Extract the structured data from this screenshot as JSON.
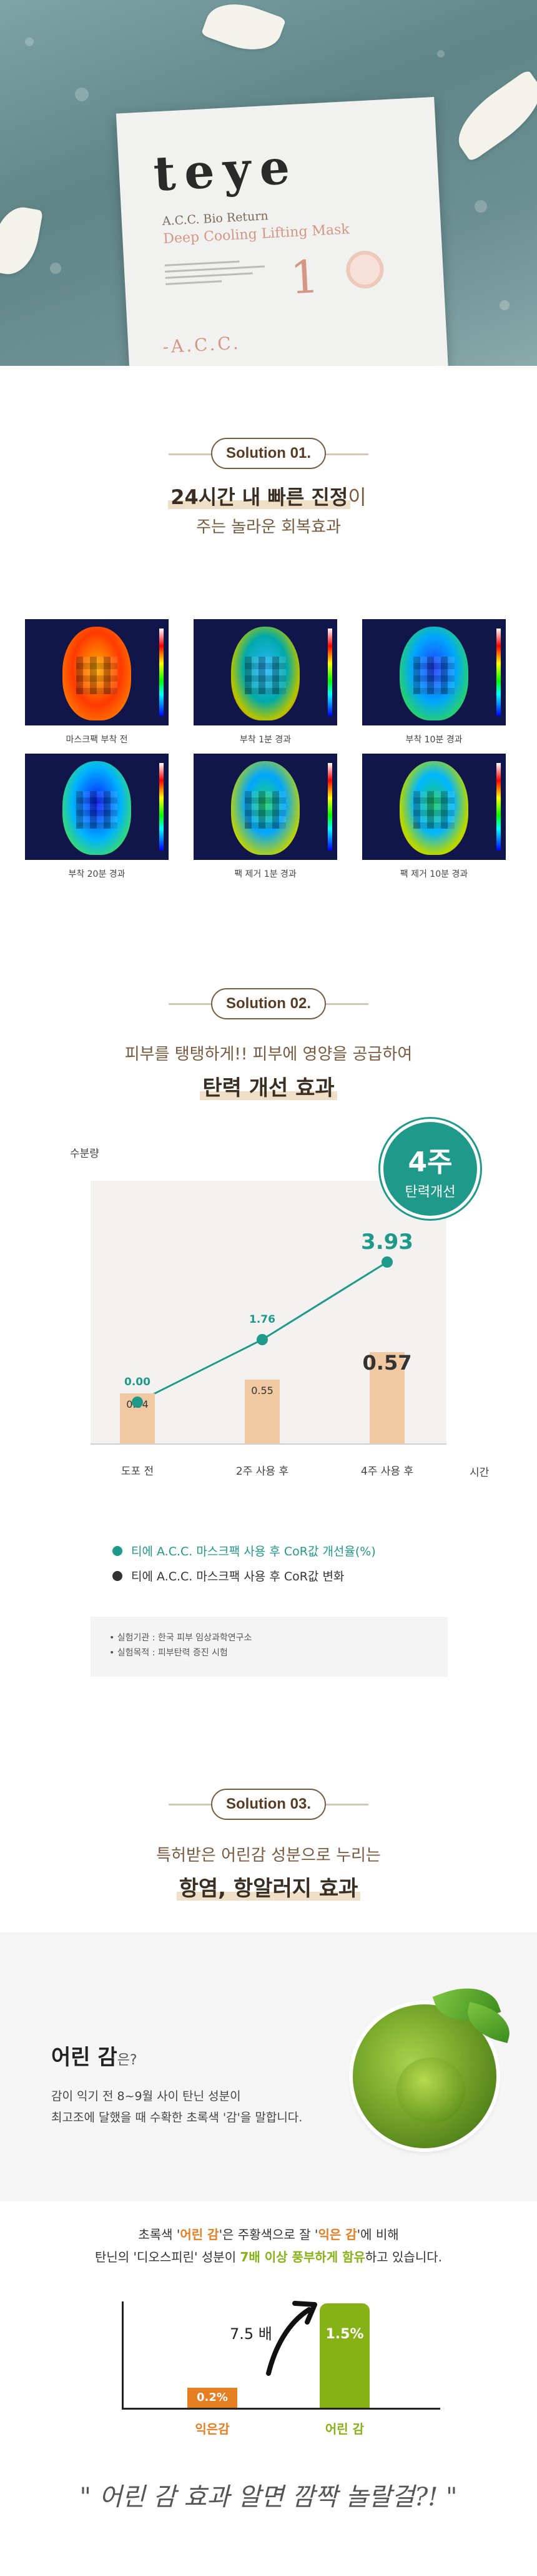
{
  "hero": {
    "brand": "teye",
    "product_line1": "A.C.C. Bio Return",
    "product_line2": "Deep Cooling Lifting Mask",
    "product_number": "1",
    "footer_mark": "-A.C.C."
  },
  "solution1": {
    "pill": "Solution 01.",
    "headline_strong": "24시간 내 빠른 진정",
    "headline_suffix": "이",
    "subline": "주는 놀라운 회복효과",
    "captions": [
      "마스크팩 부착 전",
      "부착 1분 경과",
      "부착 10분 경과",
      "부착 20분 경과",
      "팩 제거 1분 경과",
      "팩 제거 10분 경과"
    ]
  },
  "solution2": {
    "pill": "Solution 02.",
    "lead": "피부를 탱탱하게!! 피부에 영양을 공급하여",
    "headline": "탄력 개선 효과",
    "badge_big": "4주",
    "badge_small": "탄력개선",
    "legend": [
      {
        "label": "티에 A.C.C. 마스크팩 사용 후 CoR값 개선율(%)",
        "color": "#1f9a8a"
      },
      {
        "label": "티에 A.C.C. 마스크팩 사용 후 CoR값 변화",
        "color": "#333333"
      }
    ],
    "notes": [
      "실험기관 : 한국 피부 임상과학연구소",
      "실험목적 : 피부탄력 증진 시험"
    ]
  },
  "chart_data": {
    "type": "bar",
    "ylabel": "수분량",
    "xlabel": "시간",
    "categories": [
      "도포 전",
      "2주 사용 후",
      "4주 사용 후"
    ],
    "series": [
      {
        "name": "티에 A.C.C. 마스크팩 사용 후 CoR값 변화",
        "type": "bar",
        "values": [
          0.54,
          0.55,
          0.57
        ],
        "value_labels": [
          "0.54",
          "0.55",
          "0.57"
        ]
      },
      {
        "name": "티에 A.C.C. 마스크팩 사용 후 CoR값 개선율(%)",
        "type": "line",
        "values": [
          0.0,
          1.76,
          3.93
        ],
        "value_labels": [
          "0.00",
          "1.76",
          "3.93"
        ]
      }
    ]
  },
  "solution3": {
    "pill": "Solution 03.",
    "lead": "특허받은 어린감 성분으로 누리는",
    "headline": "항염, 항알러지 효과",
    "card_title": "어린 감",
    "card_title_suffix": "은?",
    "card_desc1": "감이 익기 전 8~9월 사이 탄닌 성분이",
    "card_desc2": "최고조에 달했을 때 수확한 초록색 '감'을 말합니다.",
    "compare_l1a": "초록색 '",
    "compare_l1b": "어린 감",
    "compare_l1c": "'은 주황색으로 잘 '",
    "compare_l1d": "익은 감",
    "compare_l1e": "'에 비해",
    "compare_l2a": "탄닌의 '디오스피린' 성분이 ",
    "compare_l2b": "7배 이상 풍부하게 함유",
    "compare_l2c": "하고 있습니다.",
    "multiplier": "7.5 배",
    "ripe_value": "0.2%",
    "young_value": "1.5%",
    "ripe_label": "익은감",
    "young_label": "어린 감",
    "tagline": "\" 어린 감 효과 알면 깜짝 놀랄걸?! \""
  },
  "colors": {
    "teal": "#1f9a8a",
    "bar": "#f0c9a2",
    "brown": "#5a3b23",
    "orange": "#e67e22",
    "green": "#86b216"
  }
}
